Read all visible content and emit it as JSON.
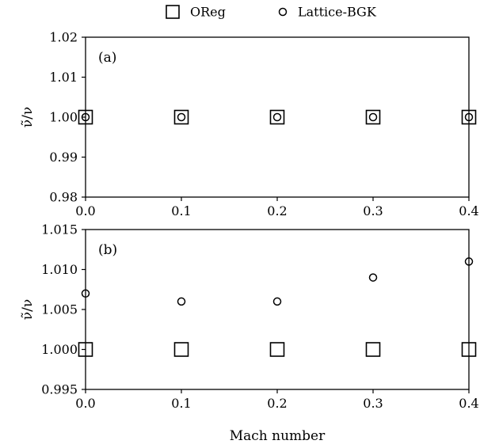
{
  "chart_data": [
    {
      "type": "scatter",
      "panel_label": "(a)",
      "ylabel": "ν̃/ν",
      "xlabel": "",
      "xlim": [
        0.0,
        0.4
      ],
      "ylim": [
        0.98,
        1.02
      ],
      "x_ticks": [
        "0.0",
        "0.1",
        "0.2",
        "0.3",
        "0.4"
      ],
      "y_ticks": [
        "0.98",
        "0.99",
        "1.00",
        "1.01",
        "1.02"
      ],
      "x": [
        0.0,
        0.1,
        0.2,
        0.3,
        0.4
      ],
      "series": [
        {
          "name": "OReg",
          "marker": "square",
          "values": [
            1.0,
            1.0,
            1.0,
            1.0,
            1.0
          ]
        },
        {
          "name": "Lattice-BGK",
          "marker": "circle",
          "values": [
            1.0,
            1.0,
            1.0,
            1.0,
            1.0
          ]
        }
      ]
    },
    {
      "type": "scatter",
      "panel_label": "(b)",
      "ylabel": "ν̃/ν",
      "xlabel": "Mach number",
      "xlim": [
        0.0,
        0.4
      ],
      "ylim": [
        0.995,
        1.015
      ],
      "x_ticks": [
        "0.0",
        "0.1",
        "0.2",
        "0.3",
        "0.4"
      ],
      "y_ticks": [
        "0.995",
        "1.000",
        "1.005",
        "1.010",
        "1.015"
      ],
      "x": [
        0.0,
        0.1,
        0.2,
        0.3,
        0.4
      ],
      "series": [
        {
          "name": "OReg",
          "marker": "square",
          "values": [
            1.0,
            1.0,
            1.0,
            1.0,
            1.0
          ]
        },
        {
          "name": "Lattice-BGK",
          "marker": "circle",
          "values": [
            1.007,
            1.006,
            1.006,
            1.009,
            1.011
          ]
        }
      ]
    }
  ],
  "legend": {
    "placement": "top-center",
    "entries": [
      {
        "label": "OReg",
        "marker": "square"
      },
      {
        "label": "Lattice-BGK",
        "marker": "circle"
      }
    ]
  },
  "colors": {
    "ink": "#000000",
    "background": "#ffffff"
  }
}
